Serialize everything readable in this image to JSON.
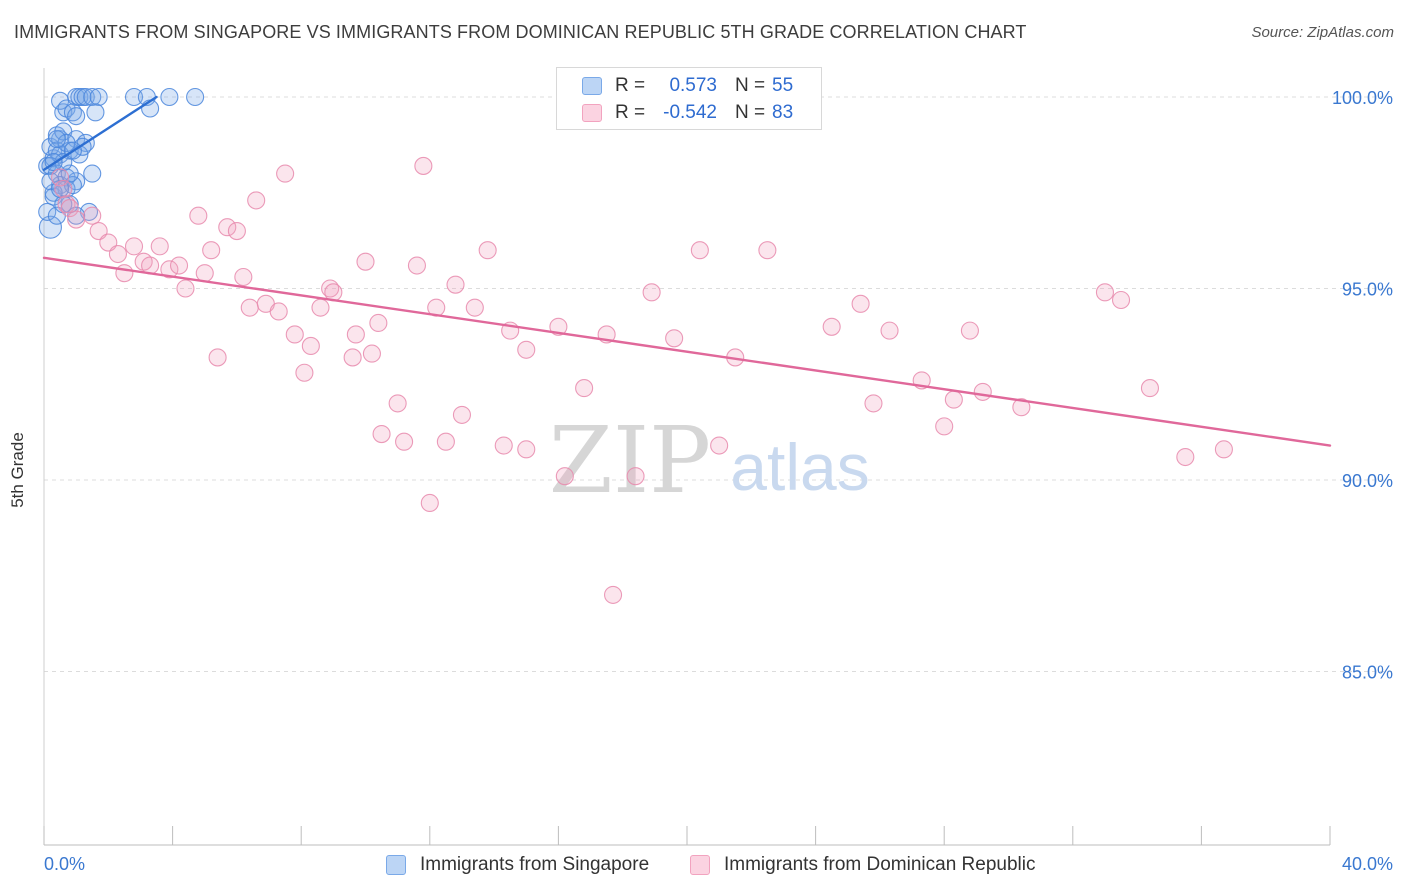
{
  "title": "IMMIGRANTS FROM SINGAPORE VS IMMIGRANTS FROM DOMINICAN REPUBLIC 5TH GRADE CORRELATION CHART",
  "source": "Source: ZipAtlas.com",
  "watermark": {
    "zip": "ZIP",
    "atlas": "atlas"
  },
  "stats": [
    {
      "r_label": "R =",
      "r_value": "0.573",
      "n_label": "N =",
      "n_value": "55",
      "color": "#7aa9e8"
    },
    {
      "r_label": "R =",
      "r_value": "-0.542",
      "n_label": "N =",
      "n_value": "83",
      "color": "#f2a3bf"
    }
  ],
  "legend": [
    {
      "label": "Immigrants from Singapore",
      "color": "#7aa9e8"
    },
    {
      "label": "Immigrants from Dominican Republic",
      "color": "#f2a3bf"
    }
  ],
  "colors": {
    "blue": "#4a86dc",
    "blue_line": "#2d6fd2",
    "pink": "#e889ad",
    "pink_line": "#e0689a",
    "tick_label": "#3a78d0",
    "grid": "#dcdcdc"
  },
  "chart_data": {
    "type": "scatter",
    "title": "IMMIGRANTS FROM SINGAPORE VS IMMIGRANTS FROM DOMINICAN REPUBLIC 5TH GRADE CORRELATION CHART",
    "xlabel": "",
    "ylabel": "5th Grade",
    "xlim": [
      0,
      40
    ],
    "ylim": [
      80.5,
      100.5
    ],
    "x_tick_labels": [
      {
        "value": 0,
        "label": "0.0%"
      },
      {
        "value": 40,
        "label": "40.0%"
      }
    ],
    "y_tick_labels": [
      {
        "value": 100,
        "label": "100.0%"
      },
      {
        "value": 95,
        "label": "95.0%"
      },
      {
        "value": 90,
        "label": "90.0%"
      },
      {
        "value": 85,
        "label": "85.0%"
      }
    ],
    "grid": true,
    "series": [
      {
        "name": "Immigrants from Singapore",
        "color": "#4a86dc",
        "trend": {
          "x": [
            0.0,
            3.5
          ],
          "y": [
            98.1,
            100.0
          ]
        },
        "points": [
          [
            0.2,
            96.6
          ],
          [
            0.1,
            97.0
          ],
          [
            0.3,
            97.4
          ],
          [
            0.1,
            98.2
          ],
          [
            0.3,
            98.4
          ],
          [
            0.2,
            98.7
          ],
          [
            0.5,
            98.9
          ],
          [
            0.4,
            99.0
          ],
          [
            0.6,
            99.1
          ],
          [
            0.6,
            99.6
          ],
          [
            0.5,
            99.9
          ],
          [
            0.7,
            99.7
          ],
          [
            1.0,
            100.0
          ],
          [
            1.1,
            100.0
          ],
          [
            1.2,
            100.0
          ],
          [
            1.3,
            100.0
          ],
          [
            1.5,
            100.0
          ],
          [
            1.7,
            100.0
          ],
          [
            2.8,
            100.0
          ],
          [
            3.2,
            100.0
          ],
          [
            3.9,
            100.0
          ],
          [
            4.7,
            100.0
          ],
          [
            3.3,
            99.7
          ],
          [
            1.6,
            99.6
          ],
          [
            0.9,
            99.6
          ],
          [
            1.0,
            98.9
          ],
          [
            1.3,
            98.8
          ],
          [
            0.8,
            98.6
          ],
          [
            1.1,
            98.5
          ],
          [
            0.5,
            98.5
          ],
          [
            0.2,
            98.2
          ],
          [
            0.4,
            98.0
          ],
          [
            1.5,
            98.0
          ],
          [
            0.7,
            97.9
          ],
          [
            1.0,
            97.8
          ],
          [
            0.5,
            97.7
          ],
          [
            0.7,
            97.6
          ],
          [
            0.9,
            97.7
          ],
          [
            0.3,
            97.5
          ],
          [
            0.8,
            97.2
          ],
          [
            1.4,
            97.0
          ],
          [
            1.0,
            96.9
          ],
          [
            0.4,
            96.9
          ],
          [
            0.2,
            97.8
          ],
          [
            0.4,
            98.6
          ],
          [
            0.7,
            98.8
          ],
          [
            0.8,
            98.0
          ],
          [
            0.6,
            98.3
          ],
          [
            0.5,
            97.6
          ],
          [
            1.2,
            98.7
          ],
          [
            1.0,
            99.5
          ],
          [
            0.9,
            98.6
          ],
          [
            0.3,
            98.3
          ],
          [
            0.4,
            98.9
          ],
          [
            0.6,
            97.2
          ]
        ]
      },
      {
        "name": "Immigrants from Dominican Republic",
        "color": "#e889ad",
        "trend": {
          "x": [
            0.0,
            40.0
          ],
          "y": [
            95.8,
            90.9
          ]
        },
        "points": [
          [
            0.5,
            97.9
          ],
          [
            0.6,
            97.6
          ],
          [
            0.7,
            97.2
          ],
          [
            0.8,
            97.1
          ],
          [
            1.0,
            96.8
          ],
          [
            1.5,
            96.9
          ],
          [
            1.7,
            96.5
          ],
          [
            2.0,
            96.2
          ],
          [
            2.3,
            95.9
          ],
          [
            2.5,
            95.4
          ],
          [
            2.8,
            96.1
          ],
          [
            3.1,
            95.7
          ],
          [
            3.3,
            95.6
          ],
          [
            3.6,
            96.1
          ],
          [
            3.9,
            95.5
          ],
          [
            4.2,
            95.6
          ],
          [
            4.4,
            95.0
          ],
          [
            4.8,
            96.9
          ],
          [
            5.0,
            95.4
          ],
          [
            5.2,
            96.0
          ],
          [
            5.4,
            93.2
          ],
          [
            5.7,
            96.6
          ],
          [
            6.0,
            96.5
          ],
          [
            6.2,
            95.3
          ],
          [
            6.4,
            94.5
          ],
          [
            6.6,
            97.3
          ],
          [
            6.9,
            94.6
          ],
          [
            7.3,
            94.4
          ],
          [
            7.5,
            98.0
          ],
          [
            7.8,
            93.8
          ],
          [
            8.1,
            92.8
          ],
          [
            8.3,
            93.5
          ],
          [
            8.6,
            94.5
          ],
          [
            8.9,
            95.0
          ],
          [
            9.0,
            94.9
          ],
          [
            9.6,
            93.2
          ],
          [
            9.7,
            93.8
          ],
          [
            10.0,
            95.7
          ],
          [
            10.2,
            93.3
          ],
          [
            10.4,
            94.1
          ],
          [
            10.5,
            91.2
          ],
          [
            11.0,
            92.0
          ],
          [
            11.2,
            91.0
          ],
          [
            11.6,
            95.6
          ],
          [
            11.8,
            98.2
          ],
          [
            12.0,
            89.4
          ],
          [
            12.2,
            94.5
          ],
          [
            12.5,
            91.0
          ],
          [
            12.8,
            95.1
          ],
          [
            13.0,
            91.7
          ],
          [
            13.4,
            94.5
          ],
          [
            13.8,
            96.0
          ],
          [
            14.3,
            90.9
          ],
          [
            14.5,
            93.9
          ],
          [
            15.0,
            93.4
          ],
          [
            15.0,
            90.8
          ],
          [
            16.0,
            94.0
          ],
          [
            16.2,
            90.1
          ],
          [
            16.8,
            92.4
          ],
          [
            17.5,
            93.8
          ],
          [
            18.4,
            90.1
          ],
          [
            18.9,
            94.9
          ],
          [
            19.6,
            93.7
          ],
          [
            20.4,
            96.0
          ],
          [
            21.0,
            90.9
          ],
          [
            21.5,
            93.2
          ],
          [
            22.5,
            96.0
          ],
          [
            24.5,
            94.0
          ],
          [
            25.4,
            94.6
          ],
          [
            25.8,
            92.0
          ],
          [
            26.3,
            93.9
          ],
          [
            27.3,
            92.6
          ],
          [
            28.0,
            91.4
          ],
          [
            28.3,
            92.1
          ],
          [
            28.8,
            93.9
          ],
          [
            29.2,
            92.3
          ],
          [
            30.4,
            91.9
          ],
          [
            33.0,
            94.9
          ],
          [
            33.5,
            94.7
          ],
          [
            34.4,
            92.4
          ],
          [
            35.5,
            90.6
          ],
          [
            36.7,
            90.8
          ],
          [
            17.7,
            87.0
          ]
        ]
      }
    ]
  }
}
